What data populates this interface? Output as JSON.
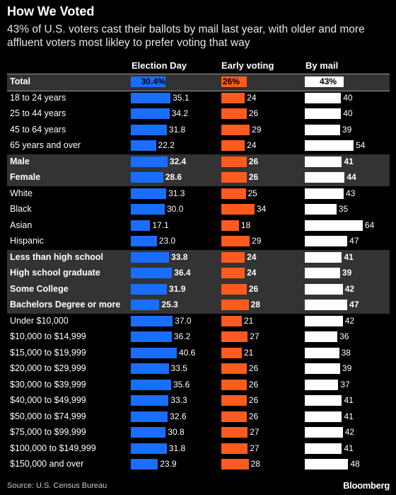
{
  "title": "How We Voted",
  "subtitle": "43% of U.S. voters cast their ballots by mail last year, with older and more affluent voters most likley to prefer voting that way",
  "source": "Source: U.S. Census Bureau",
  "brand": "Bloomberg",
  "colors": {
    "election_day": "#1a6eff",
    "early_voting": "#ff5a1f",
    "by_mail": "#ffffff",
    "group_shade": "#333333",
    "background": "#000000"
  },
  "chart_data": {
    "type": "bar",
    "orientation": "horizontal",
    "value_unit": "percent",
    "series": [
      {
        "name": "Election Day",
        "values": [
          30.4,
          35.1,
          34.2,
          31.8,
          22.2,
          32.4,
          28.6,
          31.3,
          30.0,
          17.1,
          23.0,
          33.8,
          36.4,
          31.9,
          25.3,
          37.0,
          36.2,
          40.6,
          33.5,
          35.6,
          33.3,
          32.6,
          30.8,
          31.8,
          23.9
        ],
        "labels": [
          "30.4%",
          "35.1",
          "34.2",
          "31.8",
          "22.2",
          "32.4",
          "28.6",
          "31.3",
          "30.0",
          "17.1",
          "23.0",
          "33.8",
          "36.4",
          "31.9",
          "25.3",
          "37.0",
          "36.2",
          "40.6",
          "33.5",
          "35.6",
          "33.3",
          "32.6",
          "30.8",
          "31.8",
          "23.9"
        ]
      },
      {
        "name": "Early voting",
        "values": [
          26,
          24,
          26,
          29,
          24,
          26,
          26,
          25,
          34,
          18,
          29,
          24,
          24,
          26,
          28,
          21,
          27,
          21,
          26,
          26,
          26,
          26,
          27,
          27,
          28
        ],
        "labels": [
          "26%",
          "24",
          "26",
          "29",
          "24",
          "26",
          "26",
          "25",
          "34",
          "18",
          "29",
          "24",
          "24",
          "26",
          "28",
          "21",
          "27",
          "21",
          "26",
          "26",
          "26",
          "26",
          "27",
          "27",
          "28"
        ]
      },
      {
        "name": "By mail",
        "values": [
          43,
          40,
          40,
          39,
          54,
          41,
          44,
          43,
          35,
          64,
          47,
          41,
          39,
          42,
          47,
          42,
          36,
          38,
          39,
          37,
          41,
          41,
          42,
          41,
          48
        ],
        "labels": [
          "43%",
          "40",
          "40",
          "39",
          "54",
          "41",
          "44",
          "43",
          "35",
          "64",
          "47",
          "41",
          "39",
          "42",
          "47",
          "42",
          "36",
          "38",
          "39",
          "37",
          "41",
          "41",
          "42",
          "41",
          "48"
        ]
      }
    ],
    "categories": [
      "Total",
      "18 to 24 years",
      "25 to 44 years",
      "45 to 64 years",
      "65 years and over",
      "Male",
      "Female",
      "White",
      "Black",
      "Asian",
      "Hispanic",
      "Less than high school",
      "High school graduate",
      "Some College",
      "Bachelors Degree or more",
      "Under $10,000",
      "$10,000 to $14,999",
      "$15,000 to $19,999",
      "$20,000 to $29,999",
      "$30,000 to $39,999",
      "$40,000 to $49,999",
      "$50,000 to $74,999",
      "$75,000 to $99,999",
      "$100,000 to $149,999",
      "$150,000 and over"
    ],
    "shaded_rows": [
      0,
      5,
      6,
      11,
      12,
      13,
      14
    ],
    "bold_rows": [
      0,
      5,
      6,
      11,
      12,
      13,
      14
    ]
  }
}
